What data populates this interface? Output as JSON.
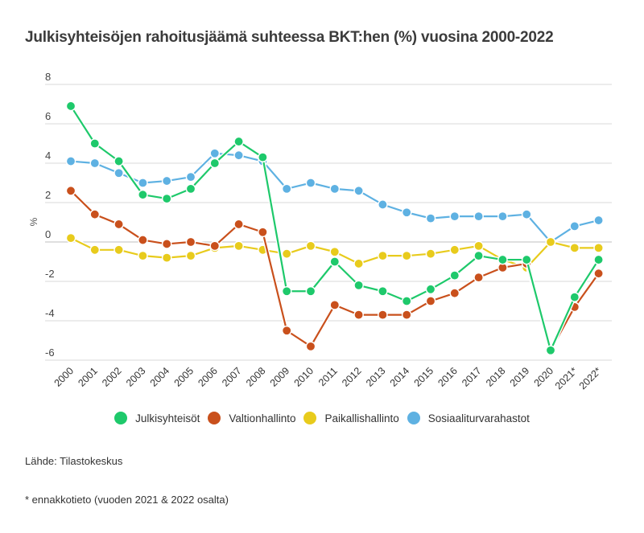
{
  "chart_data": {
    "type": "line",
    "title": "Julkisyhteisöjen rahoitusjäämä suhteessa BKT:hen (%) vuosina 2000-2022",
    "xlabel": "",
    "ylabel": "%",
    "ylim": [
      -6,
      8
    ],
    "yticks": [
      8,
      6,
      4,
      2,
      0,
      -2,
      -4,
      -6
    ],
    "grid": true,
    "legend_position": "bottom",
    "categories": [
      "2000",
      "2001",
      "2002",
      "2003",
      "2004",
      "2005",
      "2006",
      "2007",
      "2008",
      "2009",
      "2010",
      "2011",
      "2012",
      "2013",
      "2014",
      "2015",
      "2016",
      "2017",
      "2018",
      "2019",
      "2020",
      "2021*",
      "2022*"
    ],
    "series": [
      {
        "name": "Julkisyhteisöt",
        "color": "#1ec96b",
        "values": [
          6.9,
          5.0,
          4.1,
          2.4,
          2.2,
          2.7,
          4.0,
          5.1,
          4.3,
          -2.5,
          -2.5,
          -1.0,
          -2.2,
          -2.5,
          -3.0,
          -2.4,
          -1.7,
          -0.7,
          -0.9,
          -0.9,
          -5.5,
          -2.8,
          -0.9
        ]
      },
      {
        "name": "Valtionhallinto",
        "color": "#c9501c",
        "values": [
          2.6,
          1.4,
          0.9,
          0.1,
          -0.1,
          0.0,
          -0.2,
          0.9,
          0.5,
          -4.5,
          -5.3,
          -3.2,
          -3.7,
          -3.7,
          -3.7,
          -3.0,
          -2.6,
          -1.8,
          -1.3,
          -1.1,
          -5.5,
          -3.3,
          -1.6
        ]
      },
      {
        "name": "Paikallishallinto",
        "color": "#e8cb1c",
        "values": [
          0.2,
          -0.4,
          -0.4,
          -0.7,
          -0.8,
          -0.7,
          -0.3,
          -0.2,
          -0.4,
          -0.6,
          -0.2,
          -0.5,
          -1.1,
          -0.7,
          -0.7,
          -0.6,
          -0.4,
          -0.2,
          -0.9,
          -1.3,
          0.0,
          -0.3,
          -0.3
        ]
      },
      {
        "name": "Sosiaaliturvarahastot",
        "color": "#5eb1e2",
        "values": [
          4.1,
          4.0,
          3.5,
          3.0,
          3.1,
          3.3,
          4.5,
          4.4,
          4.1,
          2.7,
          3.0,
          2.7,
          2.6,
          1.9,
          1.5,
          1.2,
          1.3,
          1.3,
          1.3,
          1.4,
          0.0,
          0.8,
          1.1
        ]
      }
    ]
  },
  "source": "Lähde: Tilastokeskus",
  "note": "* ennakkotieto (vuoden 2021 & 2022 osalta)",
  "colors": {
    "gridline": "#d9d9d9",
    "zero_line": "#bfbfbf"
  }
}
